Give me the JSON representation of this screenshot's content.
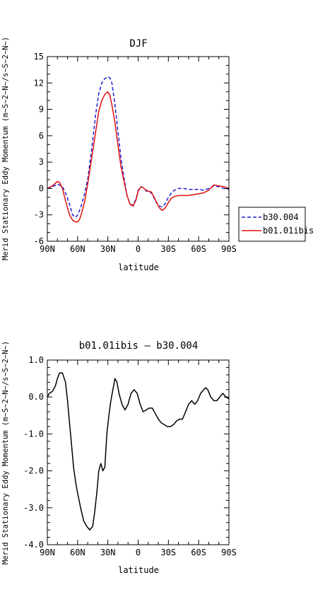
{
  "chart_data": [
    {
      "type": "line",
      "title": "DJF",
      "xlabel": "latitude",
      "ylabel": "Merid Stationary Eddy Momentum (m~S~2~N~/s~S~2~N~)",
      "x_ticks": [
        "90N",
        "60N",
        "30N",
        "0",
        "30S",
        "60S",
        "90S"
      ],
      "y_ticks": [
        "-6",
        "-3",
        "0",
        "3",
        "6",
        "9",
        "12",
        "15"
      ],
      "ylim": [
        -6,
        15
      ],
      "legend": "right",
      "series": [
        {
          "name": "b30.004",
          "color": "#1f1fd6",
          "style": "dashed",
          "x": [
            90,
            85,
            80,
            75,
            72,
            68,
            65,
            62,
            60,
            57,
            54,
            50,
            46,
            42,
            39,
            36,
            33,
            30,
            28,
            26,
            23,
            20,
            17,
            14,
            11,
            8,
            5,
            2,
            0,
            -3,
            -6,
            -8,
            -10,
            -13,
            -15,
            -18,
            -21,
            -24,
            -27,
            -30,
            -33,
            -36,
            -40,
            -45,
            -50,
            -55,
            -60,
            -65,
            -70,
            -75,
            -80,
            -85,
            -90
          ],
          "y": [
            0.0,
            0.2,
            0.5,
            0.2,
            -0.5,
            -1.8,
            -3.0,
            -3.3,
            -3.0,
            -2.2,
            -1.0,
            1.0,
            4.5,
            8.5,
            10.8,
            12.0,
            12.5,
            12.7,
            12.6,
            12.0,
            9.5,
            6.5,
            3.5,
            1.2,
            -0.8,
            -1.8,
            -1.9,
            -1.2,
            -0.2,
            0.2,
            0.0,
            -0.3,
            -0.3,
            -0.5,
            -0.9,
            -1.6,
            -2.0,
            -2.1,
            -1.7,
            -1.0,
            -0.5,
            -0.2,
            0.0,
            0.0,
            -0.1,
            -0.1,
            -0.1,
            -0.2,
            0.0,
            0.3,
            0.2,
            0.0,
            -0.1
          ]
        },
        {
          "name": "b01.01ibis",
          "color": "#e01010",
          "style": "solid",
          "x": [
            90,
            85,
            82,
            80,
            78,
            75,
            72,
            68,
            65,
            62,
            60,
            58,
            56,
            53,
            50,
            46,
            42,
            39,
            36,
            33,
            30,
            28,
            26,
            23,
            20,
            17,
            14,
            11,
            8,
            5,
            2,
            0,
            -3,
            -6,
            -8,
            -10,
            -13,
            -15,
            -18,
            -21,
            -24,
            -27,
            -30,
            -33,
            -36,
            -40,
            -45,
            -50,
            -55,
            -60,
            -65,
            -70,
            -75,
            -80,
            -85,
            -90
          ],
          "y": [
            0.0,
            0.3,
            0.6,
            0.8,
            0.7,
            0.0,
            -1.4,
            -3.0,
            -3.6,
            -3.8,
            -3.8,
            -3.5,
            -2.8,
            -1.5,
            0.5,
            3.5,
            6.5,
            8.8,
            10.0,
            10.7,
            11.0,
            10.6,
            9.5,
            7.5,
            5.0,
            2.5,
            0.8,
            -0.8,
            -1.8,
            -2.0,
            -1.3,
            -0.3,
            0.2,
            0.0,
            -0.2,
            -0.3,
            -0.4,
            -0.8,
            -1.5,
            -2.2,
            -2.5,
            -2.2,
            -1.6,
            -1.1,
            -0.9,
            -0.8,
            -0.8,
            -0.8,
            -0.7,
            -0.6,
            -0.5,
            -0.2,
            0.4,
            0.3,
            0.2,
            0.0
          ]
        }
      ]
    },
    {
      "type": "line",
      "title": "b01.01ibis – b30.004",
      "xlabel": "latitude",
      "ylabel": "Merid Stationary Eddy Momentum (m~S~2~N~/s~S~2~N~)",
      "x_ticks": [
        "90N",
        "60N",
        "30N",
        "0",
        "30S",
        "60S",
        "90S"
      ],
      "y_ticks": [
        "-4.0",
        "-3.0",
        "-2.0",
        "-1.0",
        "0.0",
        "1.0"
      ],
      "ylim": [
        -4,
        1
      ],
      "series": [
        {
          "color": "#000000",
          "style": "solid",
          "x": [
            90,
            88,
            85,
            82,
            80,
            78,
            75,
            72,
            70,
            68,
            66,
            64,
            62,
            60,
            57,
            54,
            51,
            48,
            45,
            43,
            41,
            39,
            37,
            35,
            33,
            31,
            29,
            27,
            25,
            23,
            21,
            19,
            16,
            13,
            10,
            7,
            4,
            1,
            -2,
            -5,
            -8,
            -11,
            -14,
            -17,
            -20,
            -23,
            -26,
            -29,
            -32,
            -35,
            -38,
            -41,
            -44,
            -47,
            -50,
            -53,
            -56,
            -59,
            -62,
            -65,
            -67,
            -69,
            -72,
            -75,
            -78,
            -81,
            -84,
            -87,
            -90
          ],
          "y": [
            0.0,
            0.1,
            0.15,
            0.3,
            0.5,
            0.65,
            0.65,
            0.4,
            -0.1,
            -0.7,
            -1.3,
            -1.9,
            -2.3,
            -2.6,
            -3.0,
            -3.35,
            -3.5,
            -3.6,
            -3.5,
            -3.1,
            -2.6,
            -2.0,
            -1.8,
            -2.0,
            -1.9,
            -1.0,
            -0.5,
            -0.1,
            0.2,
            0.5,
            0.4,
            0.1,
            -0.2,
            -0.35,
            -0.2,
            0.1,
            0.2,
            0.1,
            -0.2,
            -0.4,
            -0.35,
            -0.3,
            -0.3,
            -0.45,
            -0.6,
            -0.7,
            -0.75,
            -0.8,
            -0.8,
            -0.75,
            -0.65,
            -0.6,
            -0.6,
            -0.4,
            -0.2,
            -0.1,
            -0.2,
            -0.1,
            0.1,
            0.2,
            0.25,
            0.2,
            0.0,
            -0.1,
            -0.1,
            0.0,
            0.1,
            0.0,
            -0.05
          ]
        }
      ]
    }
  ]
}
